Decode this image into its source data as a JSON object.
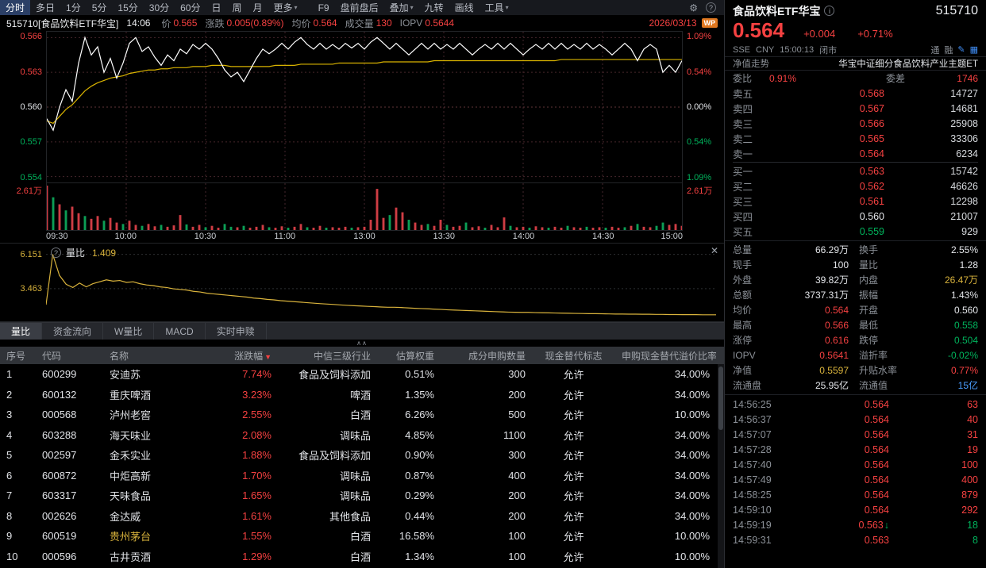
{
  "toolbar": {
    "active": "分时",
    "items": [
      {
        "label": "分时"
      },
      {
        "label": "多日"
      },
      {
        "label": "1分"
      },
      {
        "label": "5分"
      },
      {
        "label": "15分"
      },
      {
        "label": "30分"
      },
      {
        "label": "60分"
      },
      {
        "label": "日"
      },
      {
        "label": "周"
      },
      {
        "label": "月"
      },
      {
        "label": "更多",
        "arrow": true
      }
    ],
    "right_items": [
      {
        "label": "F9"
      },
      {
        "label": "盘前盘后"
      },
      {
        "label": "叠加",
        "arrow": true
      },
      {
        "label": "九转"
      },
      {
        "label": "画线"
      },
      {
        "label": "工具",
        "arrow": true
      }
    ]
  },
  "chart_header": {
    "code_name": "515710[食品饮料ETF华宝]",
    "time": "14:06",
    "price_label": "价",
    "price": "0.565",
    "change_label": "涨跌",
    "change": "0.005(0.89%)",
    "avg_label": "均价",
    "avg": "0.564",
    "vol_label": "成交量",
    "vol": "130",
    "iopv_label": "IOPV",
    "iopv": "0.5644",
    "date": "2026/03/13",
    "logo": "WP"
  },
  "indicator": {
    "help": "?",
    "name": "量比",
    "value": "1.409",
    "close": "✕"
  },
  "tabs": {
    "active": "量比",
    "items": [
      "量比",
      "资金流向",
      "W量比",
      "MACD",
      "实时申赎"
    ]
  },
  "table": {
    "headers": [
      {
        "label": "序号"
      },
      {
        "label": "代码"
      },
      {
        "label": "名称"
      },
      {
        "label": "涨跌幅",
        "sort": "▼"
      },
      {
        "label": "中信三级行业"
      },
      {
        "label": "估算权重"
      },
      {
        "label": "成分申购数量"
      },
      {
        "label": "现金替代标志"
      },
      {
        "label": "申购现金替代溢价比率"
      }
    ],
    "highlight_names": [
      "贵州茅台"
    ],
    "rows": [
      [
        "1",
        "600299",
        "安迪苏",
        "7.74%",
        "食品及饲料添加",
        "0.51%",
        "300",
        "允许",
        "34.00%"
      ],
      [
        "2",
        "600132",
        "重庆啤酒",
        "3.23%",
        "啤酒",
        "1.35%",
        "200",
        "允许",
        "34.00%"
      ],
      [
        "3",
        "000568",
        "泸州老窖",
        "2.55%",
        "白酒",
        "6.26%",
        "500",
        "允许",
        "10.00%"
      ],
      [
        "4",
        "603288",
        "海天味业",
        "2.08%",
        "调味品",
        "4.85%",
        "1100",
        "允许",
        "34.00%"
      ],
      [
        "5",
        "002597",
        "金禾实业",
        "1.88%",
        "食品及饲料添加",
        "0.90%",
        "300",
        "允许",
        "34.00%"
      ],
      [
        "6",
        "600872",
        "中炬高新",
        "1.70%",
        "调味品",
        "0.87%",
        "400",
        "允许",
        "34.00%"
      ],
      [
        "7",
        "603317",
        "天味食品",
        "1.65%",
        "调味品",
        "0.29%",
        "200",
        "允许",
        "34.00%"
      ],
      [
        "8",
        "002626",
        "金达威",
        "1.61%",
        "其他食品",
        "0.44%",
        "200",
        "允许",
        "34.00%"
      ],
      [
        "9",
        "600519",
        "贵州茅台",
        "1.55%",
        "白酒",
        "16.58%",
        "100",
        "允许",
        "10.00%"
      ],
      [
        "10",
        "000596",
        "古井贡酒",
        "1.29%",
        "白酒",
        "1.34%",
        "100",
        "允许",
        "10.00%"
      ]
    ]
  },
  "panel": {
    "name": "食品饮料ETF华宝",
    "info_icon": "i",
    "code": "515710",
    "price": "0.564",
    "change": "+0.004",
    "change_pct": "+0.71%",
    "exchange": "SSE",
    "currency": "CNY",
    "time": "15:00:13",
    "status": "闭市",
    "badges": [
      "通",
      "融"
    ],
    "nav_label": "净值走势",
    "nav_name": "华宝中证细分食品饮料产业主题ET",
    "weibi_label": "委比",
    "weibi": "0.91%",
    "weicha_label": "委差",
    "weicha": "1746",
    "asks": [
      [
        "卖五",
        "0.568",
        "14727",
        "r"
      ],
      [
        "卖四",
        "0.567",
        "14681",
        "r"
      ],
      [
        "卖三",
        "0.566",
        "25908",
        "r"
      ],
      [
        "卖二",
        "0.565",
        "33306",
        "r"
      ],
      [
        "卖一",
        "0.564",
        "6234",
        "r"
      ]
    ],
    "bids": [
      [
        "买一",
        "0.563",
        "15742",
        "r"
      ],
      [
        "买二",
        "0.562",
        "46626",
        "r"
      ],
      [
        "买三",
        "0.561",
        "12298",
        "r"
      ],
      [
        "买四",
        "0.560",
        "21007",
        "w"
      ],
      [
        "买五",
        "0.559",
        "929",
        "g"
      ]
    ],
    "stats": [
      [
        [
          "总量",
          "66.29万",
          "w"
        ],
        [
          "换手",
          "2.55%",
          "w"
        ]
      ],
      [
        [
          "现手",
          "100",
          "w"
        ],
        [
          "量比",
          "1.28",
          "w"
        ]
      ],
      [
        [
          "外盘",
          "39.82万",
          "w"
        ],
        [
          "内盘",
          "26.47万",
          "y"
        ]
      ],
      [
        [
          "总额",
          "3737.31万",
          "w"
        ],
        [
          "振幅",
          "1.43%",
          "w"
        ]
      ],
      [
        [
          "均价",
          "0.564",
          "r"
        ],
        [
          "开盘",
          "0.560",
          "w"
        ]
      ],
      [
        [
          "最高",
          "0.566",
          "r"
        ],
        [
          "最低",
          "0.558",
          "g"
        ]
      ],
      [
        [
          "涨停",
          "0.616",
          "r"
        ],
        [
          "跌停",
          "0.504",
          "g"
        ]
      ],
      [
        [
          "IOPV",
          "0.5641",
          "r"
        ],
        [
          "溢折率",
          "-0.02%",
          "g"
        ]
      ],
      [
        [
          "净值",
          "0.5597",
          "y"
        ],
        [
          "升贴水率",
          "0.77%",
          "r"
        ]
      ],
      [
        [
          "流通盘",
          "25.95亿",
          "w"
        ],
        [
          "流通值",
          "15亿",
          "b"
        ]
      ]
    ],
    "ticks": [
      [
        "14:56:25",
        "0.564",
        "",
        "63",
        "r",
        "r"
      ],
      [
        "14:56:37",
        "0.564",
        "",
        "40",
        "r",
        "r"
      ],
      [
        "14:57:07",
        "0.564",
        "",
        "31",
        "r",
        "r"
      ],
      [
        "14:57:28",
        "0.564",
        "",
        "19",
        "r",
        "r"
      ],
      [
        "14:57:40",
        "0.564",
        "",
        "100",
        "r",
        "r"
      ],
      [
        "14:57:49",
        "0.564",
        "",
        "400",
        "r",
        "r"
      ],
      [
        "14:58:25",
        "0.564",
        "",
        "879",
        "r",
        "r"
      ],
      [
        "14:59:10",
        "0.564",
        "",
        "292",
        "r",
        "r"
      ],
      [
        "14:59:19",
        "0.563",
        "↓",
        "18",
        "r",
        "g"
      ],
      [
        "14:59:31",
        "0.563",
        "",
        "8",
        "r",
        "g"
      ]
    ]
  },
  "chart_data": [
    {
      "type": "line",
      "title": "分时走势 515710 食品饮料ETF华宝",
      "x_ticks": [
        "09:30",
        "10:00",
        "10:30",
        "11:00",
        "13:00",
        "13:30",
        "14:00",
        "14:30",
        "15:00"
      ],
      "ylim": [
        0.5535,
        0.5665
      ],
      "prev_close": 0.56,
      "levels": [
        {
          "v": 0.566,
          "l": "0.566",
          "r": "1.09%",
          "c": "r"
        },
        {
          "v": 0.563,
          "l": "0.563",
          "r": "0.54%",
          "c": "r"
        },
        {
          "v": 0.56,
          "l": "0.560",
          "r": "0.00%",
          "c": "w"
        },
        {
          "v": 0.557,
          "l": "0.557",
          "r": "0.54%",
          "c": "g"
        },
        {
          "v": 0.554,
          "l": "0.554",
          "r": "1.09%",
          "c": "g"
        }
      ],
      "series": [
        {
          "name": "价格",
          "color": "#ffffff",
          "values": [
            0.559,
            0.558,
            0.56,
            0.5615,
            0.5605,
            0.5638,
            0.566,
            0.5645,
            0.5652,
            0.563,
            0.5642,
            0.5625,
            0.5638,
            0.5655,
            0.566,
            0.5648,
            0.5652,
            0.5643,
            0.5636,
            0.5645,
            0.564,
            0.565,
            0.5646,
            0.5654,
            0.565,
            0.5655,
            0.565,
            0.5642,
            0.5632,
            0.5626,
            0.563,
            0.5622,
            0.5632,
            0.5642,
            0.565,
            0.5646,
            0.565,
            0.5655,
            0.565,
            0.5656,
            0.566,
            0.5654,
            0.565,
            0.5655,
            0.565,
            0.5654,
            0.565,
            0.5655,
            0.5651,
            0.5655,
            0.565,
            0.5656,
            0.566,
            0.5655,
            0.565,
            0.5655,
            0.565,
            0.5645,
            0.565,
            0.5655,
            0.565,
            0.5655,
            0.565,
            0.5654,
            0.565,
            0.5655,
            0.565,
            0.5645,
            0.565,
            0.5654,
            0.565,
            0.5655,
            0.565,
            0.5655,
            0.565,
            0.5645,
            0.565,
            0.5654,
            0.565,
            0.5655,
            0.565,
            0.5655,
            0.565,
            0.5654,
            0.565,
            0.5655,
            0.565,
            0.5654,
            0.565,
            0.5645,
            0.565,
            0.5655,
            0.565,
            0.564,
            0.565,
            0.5654,
            0.565,
            0.563,
            0.5636,
            0.563,
            0.564
          ]
        },
        {
          "name": "均价",
          "color": "#d9b300",
          "values": [
            0.5588,
            0.5586,
            0.5592,
            0.5598,
            0.5602,
            0.5608,
            0.5614,
            0.5618,
            0.5621,
            0.5623,
            0.5625,
            0.5626,
            0.5627,
            0.5629,
            0.563,
            0.5631,
            0.5632,
            0.5632,
            0.5633,
            0.5633,
            0.5634,
            0.5634,
            0.5634,
            0.5635,
            0.5635,
            0.5635,
            0.5636,
            0.5636,
            0.5636,
            0.5635,
            0.5635,
            0.5635,
            0.5635,
            0.5635,
            0.5635,
            0.5635,
            0.5636,
            0.5636,
            0.5636,
            0.5636,
            0.5637,
            0.5637,
            0.5637,
            0.5637,
            0.5637,
            0.5637,
            0.5638,
            0.5638,
            0.5638,
            0.5638,
            0.5638,
            0.5638,
            0.5638,
            0.5639,
            0.5639,
            0.5639,
            0.5639,
            0.5639,
            0.5639,
            0.5639,
            0.5639,
            0.564,
            0.564,
            0.564,
            0.564,
            0.564,
            0.564,
            0.564,
            0.564,
            0.564,
            0.564,
            0.564,
            0.564,
            0.564,
            0.564,
            0.564,
            0.564,
            0.564,
            0.564,
            0.564,
            0.564,
            0.5641,
            0.5641,
            0.5641,
            0.5641,
            0.5641,
            0.5641,
            0.5641,
            0.5641,
            0.5641,
            0.5641,
            0.5641,
            0.5641,
            0.5641,
            0.5641,
            0.5641,
            0.5641,
            0.5641,
            0.5641,
            0.5641,
            0.5641
          ]
        }
      ],
      "volume": {
        "axis_label": "2.61万",
        "max": 26100,
        "heights": [
          0.95,
          0.7,
          0.55,
          0.42,
          0.5,
          0.36,
          0.3,
          0.24,
          0.3,
          0.2,
          0.26,
          0.16,
          0.13,
          0.2,
          0.11,
          0.09,
          0.13,
          0.08,
          0.11,
          0.07,
          0.1,
          0.32,
          0.12,
          0.07,
          0.11,
          0.06,
          0.09,
          0.05,
          0.13,
          0.07,
          0.06,
          0.09,
          0.05,
          0.07,
          0.11,
          0.06,
          0.05,
          0.08,
          0.05,
          0.07,
          0.13,
          0.06,
          0.05,
          0.09,
          0.05,
          0.06,
          0.05,
          0.07,
          0.05,
          0.06,
          0.07,
          0.22,
          0.88,
          0.26,
          0.32,
          0.48,
          0.38,
          0.22,
          0.16,
          0.11,
          0.13,
          0.09,
          0.22,
          0.11,
          0.07,
          0.09,
          0.16,
          0.06,
          0.08,
          0.05,
          0.11,
          0.06,
          0.27,
          0.09,
          0.06,
          0.07,
          0.05,
          0.08,
          0.06,
          0.05,
          0.07,
          0.05,
          0.09,
          0.06,
          0.05,
          0.07,
          0.05,
          0.06,
          0.05,
          0.07,
          0.05,
          0.06,
          0.09,
          0.13,
          0.07,
          0.06,
          0.09,
          0.16,
          0.11,
          0.13,
          0.09
        ],
        "directions": [
          1,
          0,
          1,
          0,
          1,
          1,
          0,
          1,
          1,
          0,
          1,
          1,
          0,
          1,
          1,
          0,
          1,
          1,
          0,
          1,
          1,
          1,
          0,
          1,
          1,
          0,
          1,
          1,
          0,
          0,
          1,
          0,
          1,
          1,
          1,
          0,
          1,
          1,
          0,
          1,
          1,
          0,
          1,
          1,
          0,
          1,
          1,
          1,
          0,
          1,
          1,
          1,
          1,
          1,
          0,
          1,
          1,
          0,
          1,
          1,
          0,
          1,
          1,
          0,
          1,
          1,
          0,
          1,
          1,
          0,
          1,
          1,
          1,
          0,
          1,
          1,
          0,
          1,
          1,
          0,
          1,
          1,
          0,
          1,
          1,
          0,
          1,
          1,
          0,
          1,
          1,
          0,
          1,
          0,
          1,
          1,
          0,
          0,
          1,
          1,
          1
        ]
      }
    },
    {
      "type": "line",
      "title": "量比",
      "current": "1.409",
      "ylim": [
        0.9,
        7.0
      ],
      "y_ticks": [
        {
          "value": 6.151,
          "label": "6.151"
        },
        {
          "value": 3.463,
          "label": "3.463"
        }
      ],
      "series": [
        {
          "name": "量比",
          "color": "#d9b33c",
          "values": [
            2.2,
            6.15,
            4.5,
            3.8,
            3.55,
            3.9,
            3.6,
            3.85,
            4.0,
            4.15,
            4.05,
            4.1,
            3.95,
            4.0,
            3.85,
            3.75,
            3.7,
            3.6,
            3.55,
            3.45,
            3.4,
            3.35,
            3.25,
            3.2,
            3.1,
            3.05,
            3.0,
            2.95,
            2.9,
            2.85,
            2.8,
            2.72,
            2.68,
            2.62,
            2.58,
            2.52,
            2.48,
            2.44,
            2.4,
            2.36,
            2.32,
            2.28,
            2.25,
            2.22,
            2.18,
            2.15,
            2.12,
            2.1,
            2.07,
            2.05,
            2.02,
            2.0,
            2.0,
            1.98,
            1.95,
            1.92,
            1.9,
            1.88,
            1.85,
            1.83,
            1.8,
            1.78,
            1.76,
            1.74,
            1.72,
            1.7,
            1.68,
            1.66,
            1.64,
            1.62,
            1.61,
            1.6,
            1.6,
            1.58,
            1.57,
            1.56,
            1.55,
            1.54,
            1.53,
            1.52,
            1.51,
            1.5,
            1.5,
            1.49,
            1.48,
            1.47,
            1.47,
            1.46,
            1.46,
            1.45,
            1.45,
            1.44,
            1.44,
            1.43,
            1.43,
            1.42,
            1.42,
            1.42,
            1.41,
            1.41,
            1.409
          ]
        }
      ]
    }
  ]
}
